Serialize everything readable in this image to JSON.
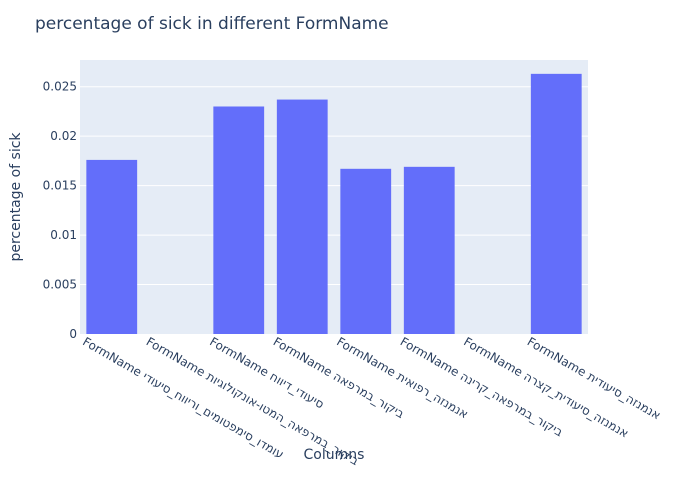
{
  "chart_data": {
    "type": "bar",
    "title": "percentage of sick in different FormName",
    "xlabel": "Columns",
    "ylabel": "percentage of sick",
    "ylim": [
      0,
      0.0277
    ],
    "yticks": [
      0,
      0.005,
      0.01,
      0.015,
      0.02,
      0.025
    ],
    "ytick_labels": [
      "0",
      "0.005",
      "0.01",
      "0.015",
      "0.02",
      "0.025"
    ],
    "categories": [
      "FormName עומדו_סימפטומים_וריווח_סיעודי",
      "FormName ביקור_במרפאה_המטו-אונקולוגיות",
      "FormName סיעודי_דיווח",
      "FormName ביקור_במרפאה",
      "FormName אנמנזה_רפואית",
      "FormName ביקור_במרפאה_קרינה",
      "FormName אנמנזה_סיעודית_קצרה",
      "FormName אנמנזה_סיעודית"
    ],
    "values": [
      0.0176,
      0,
      0.023,
      0.0237,
      0.0167,
      0.0169,
      0,
      0.0263
    ],
    "colors": {
      "bar": "#636efa",
      "plot_bg": "#e5ecf6",
      "grid": "#ffffff",
      "text": "#2a3f5f"
    }
  }
}
